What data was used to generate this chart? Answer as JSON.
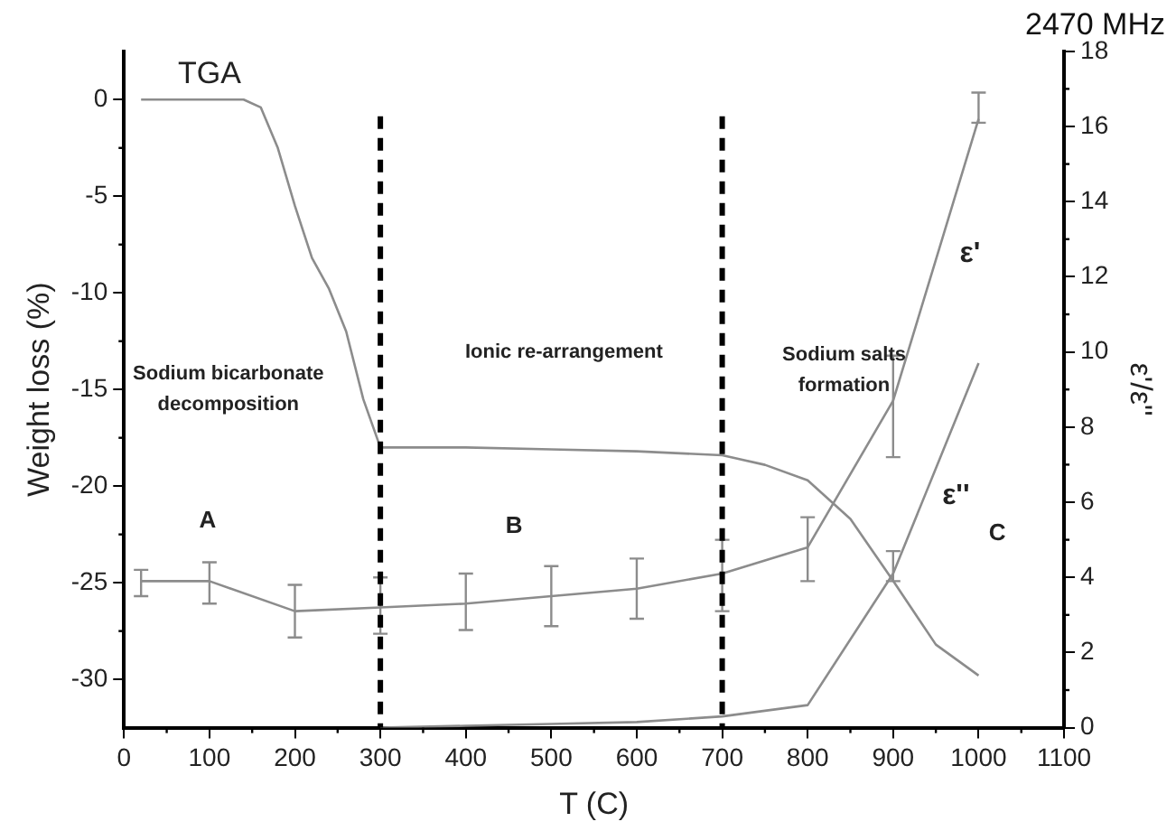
{
  "chart_data": {
    "type": "line",
    "title": "2470 MHz",
    "xlabel": "T (C)",
    "ylabel": "Weight loss (%)",
    "y2label": "ε'/ε''",
    "xlim": [
      0,
      1100
    ],
    "xticks": [
      0,
      100,
      200,
      300,
      400,
      500,
      600,
      700,
      800,
      900,
      1000,
      1100
    ],
    "ylim": [
      -32.5,
      2.5
    ],
    "yticks": [
      -30,
      -25,
      -20,
      -15,
      -10,
      -5,
      0
    ],
    "y2lim": [
      0,
      18
    ],
    "y2ticks": [
      0,
      2,
      4,
      6,
      8,
      10,
      12,
      14,
      16,
      18
    ],
    "marker": "none",
    "series": [
      {
        "name": "TGA",
        "color": "#8c8c8c",
        "x": [
          20,
          100,
          140,
          160,
          180,
          200,
          220,
          240,
          260,
          280,
          300,
          400,
          500,
          600,
          700,
          750,
          800,
          850,
          900,
          950,
          1000
        ],
        "values": [
          0,
          0,
          0,
          -0.4,
          -2.5,
          -5.5,
          -8.2,
          -9.8,
          -12,
          -15.5,
          -18,
          -18,
          -18.1,
          -18.2,
          -18.4,
          -18.9,
          -19.7,
          -21.7,
          -24.9,
          -28.2,
          -29.8
        ]
      },
      {
        "name": "ε'",
        "color": "#8c8c8c",
        "axis": "y2",
        "x": [
          20,
          100,
          200,
          300,
          400,
          500,
          600,
          700,
          800,
          900,
          1000
        ],
        "values": [
          3.9,
          3.9,
          3.1,
          3.2,
          3.3,
          3.5,
          3.7,
          4.1,
          4.8,
          8.7,
          16.2
        ],
        "errors": [
          [
            3.5,
            4.2
          ],
          [
            3.3,
            4.4
          ],
          [
            2.4,
            3.8
          ],
          [
            2.5,
            4.0
          ],
          [
            2.6,
            4.1
          ],
          [
            2.7,
            4.3
          ],
          [
            2.9,
            4.5
          ],
          [
            3.1,
            5.0
          ],
          [
            3.9,
            5.6
          ],
          [
            7.2,
            9.9
          ],
          [
            16.1,
            16.9
          ]
        ]
      },
      {
        "name": "ε''",
        "color": "#8c8c8c",
        "axis": "y2",
        "x": [
          300,
          400,
          500,
          600,
          700,
          800,
          900,
          1000
        ],
        "values": [
          0,
          0.05,
          0.1,
          0.15,
          0.3,
          0.6,
          4.1,
          9.7
        ],
        "errors": [
          null,
          null,
          null,
          null,
          null,
          null,
          [
            3.9,
            4.7
          ],
          null
        ]
      }
    ],
    "ref_lines": [
      {
        "axis": "x",
        "value": 300,
        "color": "#000000",
        "line_style": "dashed"
      },
      {
        "axis": "x",
        "value": 700,
        "color": "#000000",
        "line_style": "dashed"
      }
    ],
    "annotations": [
      "Sodium bicarbonate decomposition",
      "Ionic re-arrangement",
      "Sodium salts formation",
      "A",
      "B",
      "C"
    ]
  }
}
